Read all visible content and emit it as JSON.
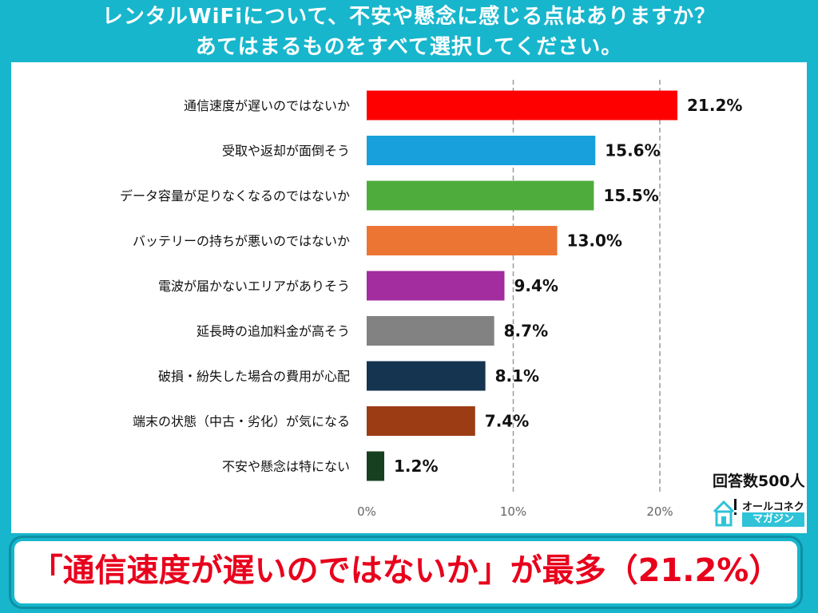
{
  "title": {
    "line1": "レンタルWiFiについて、不安や懸念に感じる点はありますか？",
    "line2": "あてはまるものをすべて選択してください。"
  },
  "chart_data": {
    "type": "bar",
    "orientation": "horizontal",
    "categories": [
      "通信速度が遅いのではないか",
      "受取や返却が面倒そう",
      "データ容量が足りなくなるのではないか",
      "バッテリーの持ちが悪いのではないか",
      "電波が届かないエリアがありそう",
      "延長時の追加料金が高そう",
      "破損・紛失した場合の費用が心配",
      "端末の状態（中古・劣化）が気になる",
      "不安や懸念は特にない"
    ],
    "values": [
      21.2,
      15.6,
      15.5,
      13.0,
      9.4,
      8.7,
      8.1,
      7.4,
      1.2
    ],
    "value_labels": [
      "21.2%",
      "15.6%",
      "15.5%",
      "13.0%",
      "9.4%",
      "8.7%",
      "8.1%",
      "7.4%",
      "1.2%"
    ],
    "colors": [
      "#fe0000",
      "#17a0db",
      "#4eac3c",
      "#ec7534",
      "#a32c9f",
      "#828282",
      "#15344f",
      "#9c3c14",
      "#174020"
    ],
    "xlim": [
      0,
      25
    ],
    "ticks": [
      0,
      10,
      20
    ],
    "tick_labels": [
      "0%",
      "10%",
      "20%"
    ],
    "grid": "dashed vertical at 10% and 20%"
  },
  "sample_note": "回答数500人",
  "logo": {
    "top": "オールコネクト",
    "bottom": "マガジン"
  },
  "footer": {
    "headline": "「通信速度が遅いのではないか」が最多（21.2%）"
  }
}
